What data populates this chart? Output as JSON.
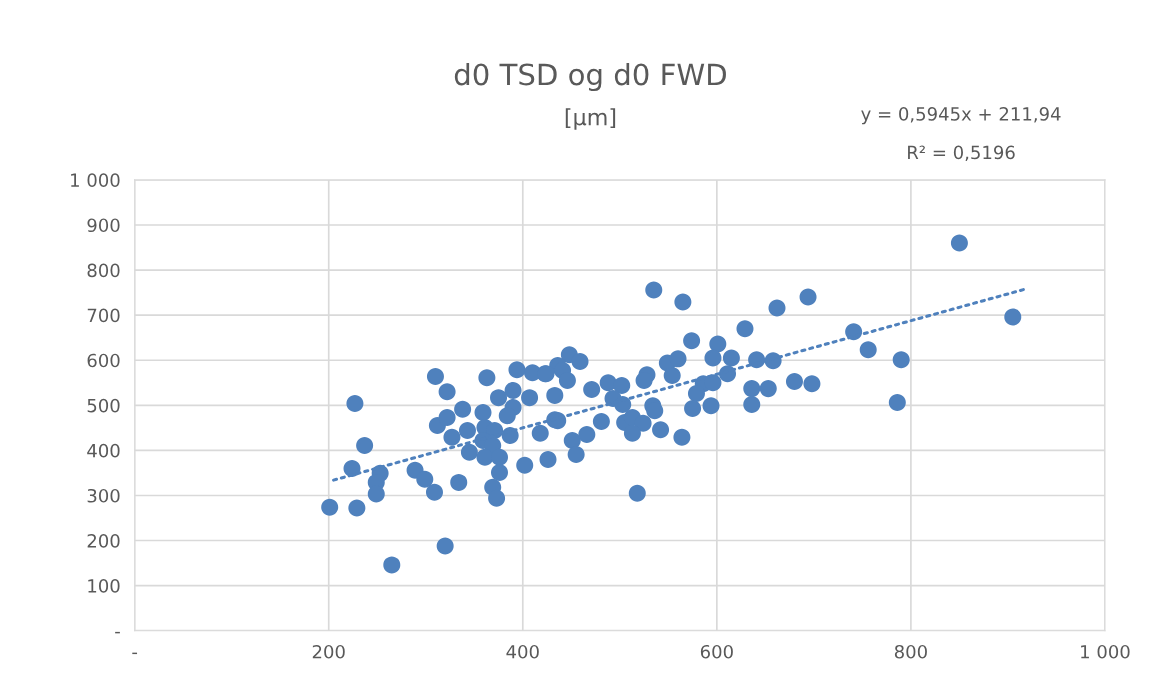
{
  "chart_data": {
    "type": "scatter",
    "title": "d0 TSD og d0 FWD",
    "subtitle": "[µm]",
    "annotations": [
      "y = 0,5945x + 211,94",
      "R² = 0,5196"
    ],
    "xlim": [
      0,
      1000
    ],
    "ylim": [
      0,
      1000
    ],
    "xticks": [
      {
        "value": 0,
        "label": "-"
      },
      200,
      400,
      600,
      800,
      {
        "value": 1000,
        "label": "1 000"
      }
    ],
    "yticks": [
      {
        "value": 0,
        "label": "-"
      },
      100,
      200,
      300,
      400,
      500,
      600,
      700,
      800,
      900,
      {
        "value": 1000,
        "label": "1 000"
      }
    ],
    "grid": true,
    "legend": false,
    "marker": "circle",
    "series": [
      {
        "color": "#4f81bd",
        "x": [
          535,
          565,
          662,
          629,
          574,
          601,
          596,
          615,
          641,
          658,
          549,
          560,
          448,
          459,
          436,
          423,
          441,
          446,
          433,
          471,
          488,
          502,
          493,
          503,
          528,
          525,
          554,
          534,
          536,
          586,
          596,
          611,
          636,
          653,
          579,
          575,
          594,
          636,
          436,
          418,
          481,
          451,
          466,
          455,
          426,
          505,
          513,
          524,
          513,
          542,
          564,
          310,
          322,
          227,
          338,
          363,
          312,
          322,
          327,
          343,
          359,
          375,
          394,
          410,
          424,
          433,
          390,
          407,
          390,
          384,
          361,
          371,
          387,
          359,
          345,
          369,
          361,
          376,
          376,
          369,
          373,
          334,
          402,
          237,
          224,
          253,
          249,
          249,
          289,
          299,
          309,
          201,
          229,
          518,
          265,
          320,
          694,
          741,
          756,
          790,
          786,
          850,
          905,
          680,
          698
        ],
        "values": [
          756,
          729,
          716,
          670,
          643,
          636,
          605,
          605,
          601,
          599,
          594,
          603,
          612,
          597,
          588,
          570,
          577,
          555,
          522,
          535,
          550,
          544,
          515,
          502,
          568,
          555,
          566,
          499,
          488,
          548,
          550,
          570,
          537,
          537,
          526,
          493,
          499,
          502,
          466,
          438,
          464,
          422,
          435,
          391,
          380,
          462,
          473,
          460,
          438,
          446,
          429,
          564,
          530,
          504,
          491,
          561,
          455,
          473,
          429,
          444,
          484,
          517,
          579,
          572,
          570,
          468,
          533,
          517,
          495,
          477,
          451,
          444,
          433,
          422,
          396,
          411,
          385,
          385,
          351,
          318,
          294,
          329,
          367,
          411,
          360,
          349,
          329,
          303,
          356,
          336,
          307,
          274,
          272,
          305,
          146,
          188,
          740,
          663,
          623,
          601,
          506,
          860,
          696,
          553,
          548
        ]
      },
      {
        "type": "line",
        "line_style": "dotted",
        "marker": "none",
        "color": "#4f81bd",
        "x": [
          205,
          920
        ],
        "values": [
          334,
          759
        ]
      }
    ]
  }
}
